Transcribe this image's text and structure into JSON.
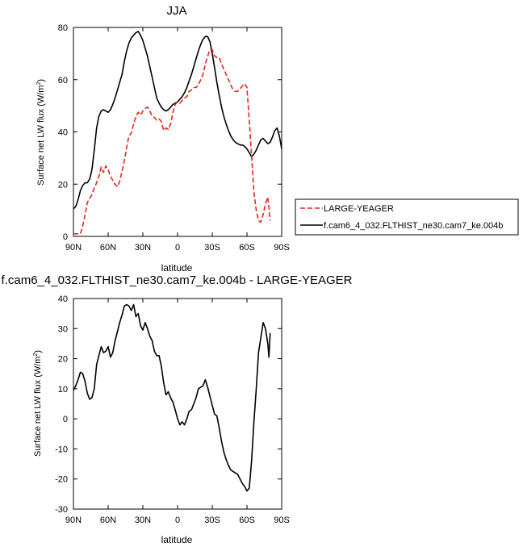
{
  "chart_data": [
    {
      "type": "line",
      "title": "JJA",
      "xlabel": "latitude",
      "ylabel": "Surface net LW flux (W/m²)",
      "ylabel_base": "Surface net LW flux (W/m",
      "ylabel_sup": "2",
      "ylabel_end": ")",
      "xlim": [
        90,
        -90
      ],
      "ylim": [
        0,
        80
      ],
      "xticks": [
        90,
        60,
        30,
        0,
        -30,
        -60,
        -90
      ],
      "xticklabels": [
        "90N",
        "60N",
        "30N",
        "0",
        "30S",
        "60S",
        "90S"
      ],
      "yticks": [
        0,
        20,
        40,
        60,
        80
      ],
      "yticklabels": [
        "0",
        "20",
        "40",
        "60",
        "80"
      ],
      "grid": false,
      "legend_placement": "right",
      "series": [
        {
          "name": "LARGE-YEAGER",
          "color": "#e8231c",
          "dash": "dashed",
          "points": [
            [
              90,
              1
            ],
            [
              86,
              1
            ],
            [
              84,
              1
            ],
            [
              82,
              4
            ],
            [
              80,
              8
            ],
            [
              78,
              13
            ],
            [
              76,
              14.5
            ],
            [
              74,
              16
            ],
            [
              72,
              18.5
            ],
            [
              70,
              20.5
            ],
            [
              68,
              23
            ],
            [
              66,
              26.5
            ],
            [
              64,
              24.5
            ],
            [
              62,
              27
            ],
            [
              60,
              25.5
            ],
            [
              58,
              23
            ],
            [
              56,
              21.5
            ],
            [
              54,
              20
            ],
            [
              52,
              19
            ],
            [
              50,
              21
            ],
            [
              48,
              25
            ],
            [
              46,
              29
            ],
            [
              44,
              34
            ],
            [
              42,
              38.5
            ],
            [
              40,
              39.5
            ],
            [
              38,
              43
            ],
            [
              36,
              46
            ],
            [
              34,
              47.5
            ],
            [
              32,
              46.5
            ],
            [
              30,
              48
            ],
            [
              28,
              49
            ],
            [
              26,
              49.5
            ],
            [
              24,
              48
            ],
            [
              22,
              46
            ],
            [
              20,
              45.5
            ],
            [
              18,
              44.5
            ],
            [
              16,
              45
            ],
            [
              14,
              44
            ],
            [
              12,
              40.5
            ],
            [
              10,
              41.5
            ],
            [
              8,
              41
            ],
            [
              6,
              43
            ],
            [
              4,
              47.5
            ],
            [
              2,
              50.5
            ],
            [
              0,
              51.5
            ],
            [
              -2,
              51
            ],
            [
              -4,
              52
            ],
            [
              -6,
              53
            ],
            [
              -8,
              53.5
            ],
            [
              -10,
              55.5
            ],
            [
              -12,
              56
            ],
            [
              -14,
              57
            ],
            [
              -16,
              57
            ],
            [
              -18,
              58
            ],
            [
              -20,
              60
            ],
            [
              -22,
              62
            ],
            [
              -24,
              66
            ],
            [
              -26,
              69
            ],
            [
              -28,
              71.5
            ],
            [
              -30,
              71.5
            ],
            [
              -32,
              69
            ],
            [
              -34,
              68.5
            ],
            [
              -36,
              68.5
            ],
            [
              -38,
              66
            ],
            [
              -40,
              64
            ],
            [
              -42,
              62
            ],
            [
              -44,
              60
            ],
            [
              -46,
              58
            ],
            [
              -48,
              56
            ],
            [
              -50,
              55.5
            ],
            [
              -52,
              55.5
            ],
            [
              -54,
              56.5
            ],
            [
              -56,
              57.5
            ],
            [
              -58,
              58.5
            ],
            [
              -60,
              57
            ],
            [
              -62,
              44
            ],
            [
              -64,
              31
            ],
            [
              -66,
              17
            ],
            [
              -68,
              10
            ],
            [
              -70,
              6
            ],
            [
              -72,
              5.5
            ],
            [
              -74,
              8.5
            ],
            [
              -76,
              12.5
            ],
            [
              -78,
              15
            ],
            [
              -79,
              11
            ],
            [
              -80,
              6
            ]
          ]
        },
        {
          "name": "f.cam6_4_032.FLTHIST_ne30.cam7_ke.004b",
          "color": "#000000",
          "dash": "solid",
          "points": [
            [
              90,
              10.5
            ],
            [
              88,
              11.5
            ],
            [
              86,
              14
            ],
            [
              84,
              17.5
            ],
            [
              82,
              19.5
            ],
            [
              80,
              20.5
            ],
            [
              78,
              20.5
            ],
            [
              76,
              22
            ],
            [
              74,
              25.5
            ],
            [
              72,
              33
            ],
            [
              70,
              41.5
            ],
            [
              68,
              46
            ],
            [
              66,
              48
            ],
            [
              64,
              48.5
            ],
            [
              62,
              48
            ],
            [
              60,
              47.5
            ],
            [
              58,
              48.5
            ],
            [
              56,
              50.5
            ],
            [
              54,
              53
            ],
            [
              52,
              56
            ],
            [
              50,
              59
            ],
            [
              48,
              62
            ],
            [
              46,
              67
            ],
            [
              44,
              71
            ],
            [
              42,
              74
            ],
            [
              40,
              76
            ],
            [
              38,
              77
            ],
            [
              36,
              78
            ],
            [
              34,
              78.5
            ],
            [
              32,
              77
            ],
            [
              30,
              75
            ],
            [
              28,
              72
            ],
            [
              26,
              69
            ],
            [
              24,
              65
            ],
            [
              22,
              61
            ],
            [
              20,
              57
            ],
            [
              18,
              53
            ],
            [
              16,
              51
            ],
            [
              14,
              49.5
            ],
            [
              12,
              48.5
            ],
            [
              10,
              48
            ],
            [
              8,
              48.5
            ],
            [
              6,
              49.5
            ],
            [
              4,
              50.5
            ],
            [
              2,
              51
            ],
            [
              0,
              51.5
            ],
            [
              -2,
              52.5
            ],
            [
              -4,
              53.5
            ],
            [
              -6,
              55
            ],
            [
              -8,
              57
            ],
            [
              -10,
              59.5
            ],
            [
              -12,
              62
            ],
            [
              -14,
              65
            ],
            [
              -16,
              68
            ],
            [
              -18,
              71
            ],
            [
              -20,
              73.5
            ],
            [
              -22,
              75.5
            ],
            [
              -24,
              76.5
            ],
            [
              -26,
              76.5
            ],
            [
              -28,
              74.5
            ],
            [
              -30,
              70
            ],
            [
              -32,
              64.5
            ],
            [
              -34,
              59
            ],
            [
              -36,
              54
            ],
            [
              -38,
              49.5
            ],
            [
              -40,
              46
            ],
            [
              -42,
              43
            ],
            [
              -44,
              40.5
            ],
            [
              -46,
              38.5
            ],
            [
              -48,
              37
            ],
            [
              -50,
              36
            ],
            [
              -52,
              35.5
            ],
            [
              -54,
              35
            ],
            [
              -56,
              35
            ],
            [
              -58,
              34.5
            ],
            [
              -60,
              33.5
            ],
            [
              -62,
              32
            ],
            [
              -64,
              30.5
            ],
            [
              -66,
              31.5
            ],
            [
              -68,
              33
            ],
            [
              -70,
              35
            ],
            [
              -72,
              37
            ],
            [
              -74,
              37.5
            ],
            [
              -76,
              36.5
            ],
            [
              -78,
              35.5
            ],
            [
              -80,
              36
            ],
            [
              -82,
              38
            ],
            [
              -84,
              40.5
            ],
            [
              -86,
              41.5
            ],
            [
              -88,
              38.5
            ],
            [
              -90,
              33.5
            ]
          ]
        }
      ]
    },
    {
      "type": "line",
      "title": "f.cam6_4_032.FLTHIST_ne30.cam7_ke.004b - LARGE-YEAGER",
      "xlabel": "latitude",
      "ylabel": "Surface net LW flux (W/m²)",
      "ylabel_base": "Surface net LW flux (W/m",
      "ylabel_sup": "2",
      "ylabel_end": ")",
      "xlim": [
        90,
        -90
      ],
      "ylim": [
        -30,
        40
      ],
      "xticks": [
        90,
        60,
        30,
        0,
        -30,
        -60,
        -90
      ],
      "xticklabels": [
        "90N",
        "60N",
        "30N",
        "0",
        "30S",
        "60S",
        "90S"
      ],
      "yticks": [
        -30,
        -20,
        -10,
        0,
        10,
        20,
        30,
        40
      ],
      "yticklabels": [
        "-30",
        "-20",
        "-10",
        "0",
        "10",
        "20",
        "30",
        "40"
      ],
      "grid": false,
      "series": [
        {
          "name": "",
          "color": "#000000",
          "dash": "solid",
          "points": [
            [
              90,
              9.5
            ],
            [
              88,
              11
            ],
            [
              86,
              13
            ],
            [
              84,
              15.5
            ],
            [
              82,
              15
            ],
            [
              80,
              12.5
            ],
            [
              78,
              8.5
            ],
            [
              76,
              6.5
            ],
            [
              74,
              7
            ],
            [
              72,
              10
            ],
            [
              70,
              18
            ],
            [
              68,
              21
            ],
            [
              66,
              24
            ],
            [
              64,
              22
            ],
            [
              62,
              22.5
            ],
            [
              60,
              24
            ],
            [
              58,
              20.5
            ],
            [
              56,
              22
            ],
            [
              54,
              26
            ],
            [
              52,
              29
            ],
            [
              50,
              32
            ],
            [
              48,
              34.5
            ],
            [
              46,
              37.5
            ],
            [
              44,
              38
            ],
            [
              42,
              37.5
            ],
            [
              40,
              36
            ],
            [
              38,
              38
            ],
            [
              36,
              34
            ],
            [
              34,
              35
            ],
            [
              32,
              31
            ],
            [
              30,
              29.5
            ],
            [
              28,
              32
            ],
            [
              26,
              30
            ],
            [
              24,
              27.5
            ],
            [
              22,
              26
            ],
            [
              20,
              22.5
            ],
            [
              18,
              21
            ],
            [
              16,
              21
            ],
            [
              14,
              17.5
            ],
            [
              12,
              12
            ],
            [
              10,
              8
            ],
            [
              8,
              9
            ],
            [
              6,
              7
            ],
            [
              4,
              5.5
            ],
            [
              2,
              3
            ],
            [
              0,
              0
            ],
            [
              -2,
              -2
            ],
            [
              -4,
              -1
            ],
            [
              -6,
              -2
            ],
            [
              -8,
              0
            ],
            [
              -10,
              2.5
            ],
            [
              -12,
              3
            ],
            [
              -14,
              5
            ],
            [
              -16,
              7
            ],
            [
              -18,
              10
            ],
            [
              -20,
              10.5
            ],
            [
              -22,
              11
            ],
            [
              -24,
              13
            ],
            [
              -26,
              10.5
            ],
            [
              -28,
              7.5
            ],
            [
              -30,
              4.5
            ],
            [
              -32,
              1.5
            ],
            [
              -34,
              1
            ],
            [
              -36,
              -3
            ],
            [
              -38,
              -7.5
            ],
            [
              -40,
              -11
            ],
            [
              -42,
              -13.5
            ],
            [
              -44,
              -15.5
            ],
            [
              -46,
              -17
            ],
            [
              -48,
              -17.5
            ],
            [
              -50,
              -18
            ],
            [
              -52,
              -18.5
            ],
            [
              -54,
              -20
            ],
            [
              -56,
              -21.5
            ],
            [
              -58,
              -22.5
            ],
            [
              -60,
              -24
            ],
            [
              -62,
              -23
            ],
            [
              -64,
              -14
            ],
            [
              -66,
              -1
            ],
            [
              -68,
              10
            ],
            [
              -70,
              22
            ],
            [
              -72,
              27
            ],
            [
              -74,
              32
            ],
            [
              -76,
              30
            ],
            [
              -78,
              25
            ],
            [
              -79,
              20.5
            ],
            [
              -80,
              28.5
            ]
          ]
        }
      ]
    }
  ]
}
